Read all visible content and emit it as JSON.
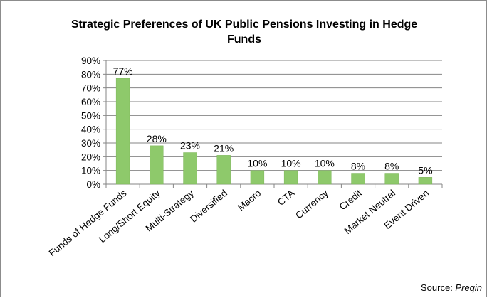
{
  "chart_data": {
    "type": "bar",
    "title": "Strategic Preferences of UK Public Pensions Investing in Hedge Funds",
    "title_lines": [
      "Strategic Preferences of UK Public Pensions Investing in Hedge",
      "Funds"
    ],
    "categories": [
      "Funds of Hedge Funds",
      "Long/Short Equity",
      "Multi-Strategy",
      "Diversified",
      "Macro",
      "CTA",
      "Currency",
      "Credit",
      "Market Neutral",
      "Event Driven"
    ],
    "values": [
      77,
      28,
      23,
      21,
      10,
      10,
      10,
      8,
      8,
      5
    ],
    "value_labels": [
      "77%",
      "28%",
      "23%",
      "21%",
      "10%",
      "10%",
      "10%",
      "8%",
      "8%",
      "5%"
    ],
    "yticks": [
      0,
      10,
      20,
      30,
      40,
      50,
      60,
      70,
      80,
      90
    ],
    "ytick_labels": [
      "0%",
      "10%",
      "20%",
      "30%",
      "40%",
      "50%",
      "60%",
      "70%",
      "80%",
      "90%"
    ],
    "ylim": [
      0,
      90
    ],
    "xlabel": "",
    "ylabel": "",
    "grid": true,
    "legend": "none",
    "bar_color": "#8ec96b",
    "bar_edge_color": "#7ab356"
  },
  "source": {
    "prefix": "Source: ",
    "name": "Preqin"
  }
}
